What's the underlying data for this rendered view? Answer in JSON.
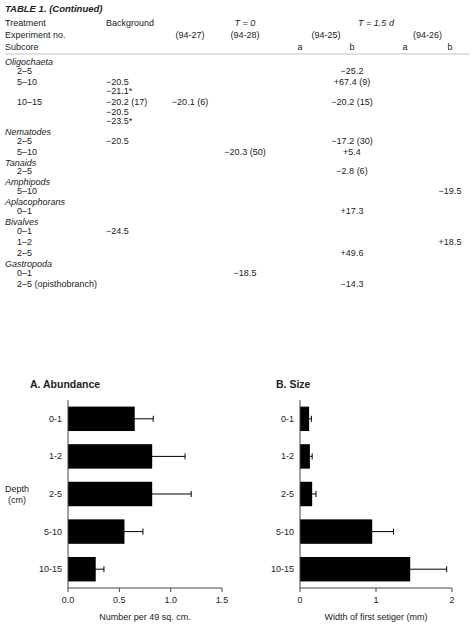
{
  "table": {
    "title": "TABLE 1.  (Continued)",
    "header_rows": [
      [
        "Treatment",
        "Background",
        "T = 0",
        "T = 1.5 d"
      ],
      [
        "Experiment no.",
        "(94-27)",
        "(94-28)",
        "(94-25)",
        "(94-26)"
      ],
      [
        "Subcore",
        "a",
        "b",
        "a",
        "b"
      ]
    ],
    "rows": [
      {
        "group": "Oligochaeta"
      },
      {
        "subcore": "2–5",
        "values": [
          null,
          null,
          null,
          null,
          "−25.2",
          null,
          null
        ]
      },
      {
        "subcore": "5–10",
        "values": [
          "−20.5",
          null,
          null,
          null,
          "+67.4 (9)",
          null,
          null
        ]
      },
      {
        "values": [
          "−21.1*",
          null,
          null,
          null,
          null,
          null,
          null
        ]
      },
      {
        "subcore": "10–15",
        "values": [
          "−20.2 (17)",
          "−20.1 (6)",
          null,
          null,
          "−20.2 (15)",
          null,
          null
        ]
      },
      {
        "values": [
          "−20.5",
          null,
          null,
          null,
          null,
          null,
          null
        ]
      },
      {
        "values": [
          "−23.5*",
          null,
          null,
          null,
          null,
          null,
          null
        ]
      },
      {
        "group": "Nematodes"
      },
      {
        "subcore": "2–5",
        "values": [
          "−20.5",
          null,
          null,
          null,
          "−17.2 (30)",
          null,
          null
        ]
      },
      {
        "subcore": "5–10",
        "values": [
          null,
          null,
          "−20.3 (50)",
          null,
          "+5.4",
          null,
          null
        ]
      },
      {
        "group": "Tanaids"
      },
      {
        "subcore": "2–5",
        "values": [
          null,
          null,
          null,
          null,
          "−2.8 (6)",
          null,
          null
        ]
      },
      {
        "group": "Amphipods"
      },
      {
        "subcore": "5–10",
        "values": [
          null,
          null,
          null,
          null,
          null,
          null,
          "−19.5"
        ]
      },
      {
        "group": "Aplacophorans"
      },
      {
        "subcore": "0–1",
        "values": [
          null,
          null,
          null,
          null,
          "+17.3",
          null,
          null
        ]
      },
      {
        "group": "Bivalves"
      },
      {
        "subcore": "0–1",
        "values": [
          "−24.5",
          null,
          null,
          null,
          null,
          null,
          null
        ]
      },
      {
        "subcore": "1–2",
        "values": [
          null,
          null,
          null,
          null,
          null,
          null,
          "+18.5"
        ]
      },
      {
        "subcore": "2–5",
        "values": [
          null,
          null,
          null,
          null,
          "+49.6",
          null,
          null
        ]
      },
      {
        "group": "Gastropoda"
      },
      {
        "subcore": "0–1",
        "values": [
          null,
          null,
          "−18.5",
          null,
          null,
          null,
          null
        ]
      },
      {
        "subcore": "2–5 (opisthobranch)",
        "values": [
          null,
          null,
          null,
          null,
          "−14.3",
          null,
          null
        ]
      }
    ]
  },
  "chart_data": [
    {
      "type": "bar",
      "orientation": "horizontal",
      "title": "A. Abundance",
      "categories": [
        "0-1",
        "1-2",
        "2-5",
        "5-10",
        "10-15"
      ],
      "values": [
        0.65,
        0.82,
        0.82,
        0.55,
        0.27
      ],
      "errors": [
        0.18,
        0.32,
        0.38,
        0.18,
        0.08
      ],
      "color": "#000000",
      "xlabel": "Number per 49 sq. cm.",
      "ylabel": "Depth\n(cm)",
      "xlim": [
        0.0,
        1.5
      ],
      "xticks": [
        {
          "value": 0.0,
          "label": "0.0"
        },
        0.5,
        {
          "value": 1.0,
          "label": "1.0"
        },
        1.5
      ],
      "grid": false
    },
    {
      "type": "bar",
      "orientation": "horizontal",
      "title": "B. Size",
      "categories": [
        "0-1",
        "1-2",
        "2-5",
        "5-10",
        "10-15"
      ],
      "values": [
        0.12,
        0.13,
        0.16,
        0.95,
        1.45
      ],
      "errors": [
        0.03,
        0.03,
        0.05,
        0.28,
        0.48
      ],
      "color": "#000000",
      "xlabel": "Width of first setiger (mm)",
      "xlim": [
        0,
        2
      ],
      "xticks": [
        0,
        1,
        2
      ],
      "grid": false
    }
  ]
}
